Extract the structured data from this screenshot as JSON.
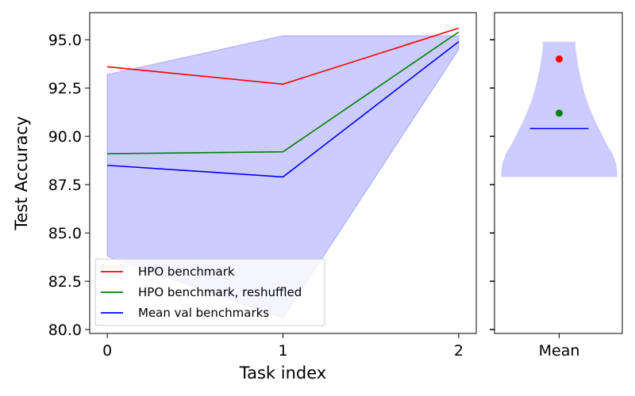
{
  "chart_data": [
    {
      "type": "line",
      "xlabel": "Task index",
      "ylabel": "Test Accuracy",
      "x": [
        0,
        1,
        2
      ],
      "xticks": [
        "0",
        "1",
        "2"
      ],
      "yticks": [
        "80.0",
        "82.5",
        "85.0",
        "87.5",
        "90.0",
        "92.5",
        "95.0"
      ],
      "xlim": [
        -0.1,
        2.1
      ],
      "ylim": [
        79.8,
        96.4
      ],
      "band": {
        "color": "#ccccff",
        "lower": [
          83.8,
          80.6,
          94.5
        ],
        "upper": [
          93.2,
          95.2,
          95.2
        ]
      },
      "series": [
        {
          "name": "HPO benchmark",
          "color": "#ff0000",
          "values": [
            93.6,
            92.7,
            95.6
          ]
        },
        {
          "name": "HPO benchmark, reshuffled",
          "color": "#008000",
          "values": [
            89.1,
            89.2,
            95.4
          ]
        },
        {
          "name": "Mean val benchmarks",
          "color": "#0000ff",
          "values": [
            88.5,
            87.9,
            94.9
          ]
        }
      ],
      "legend": {
        "position": "lower-left"
      },
      "grid": false
    },
    {
      "type": "violin",
      "xticks": [
        "Mean"
      ],
      "violin": {
        "color": "#ccccff",
        "y_min": 87.9,
        "y_max": 94.9,
        "profile": [
          [
            87.9,
            1.0
          ],
          [
            88.2,
            1.0
          ],
          [
            88.6,
            0.98
          ],
          [
            89.1,
            0.92
          ],
          [
            89.6,
            0.82
          ],
          [
            90.2,
            0.72
          ],
          [
            90.8,
            0.62
          ],
          [
            91.5,
            0.52
          ],
          [
            92.2,
            0.44
          ],
          [
            92.9,
            0.38
          ],
          [
            93.6,
            0.33
          ],
          [
            94.2,
            0.3
          ],
          [
            94.6,
            0.28
          ],
          [
            94.9,
            0.28
          ]
        ]
      },
      "points": [
        {
          "color": "#ff0000",
          "value": 94.0
        },
        {
          "color": "#008000",
          "value": 91.2
        }
      ],
      "mean_line": {
        "color": "#0000ff",
        "value": 90.4
      }
    }
  ]
}
